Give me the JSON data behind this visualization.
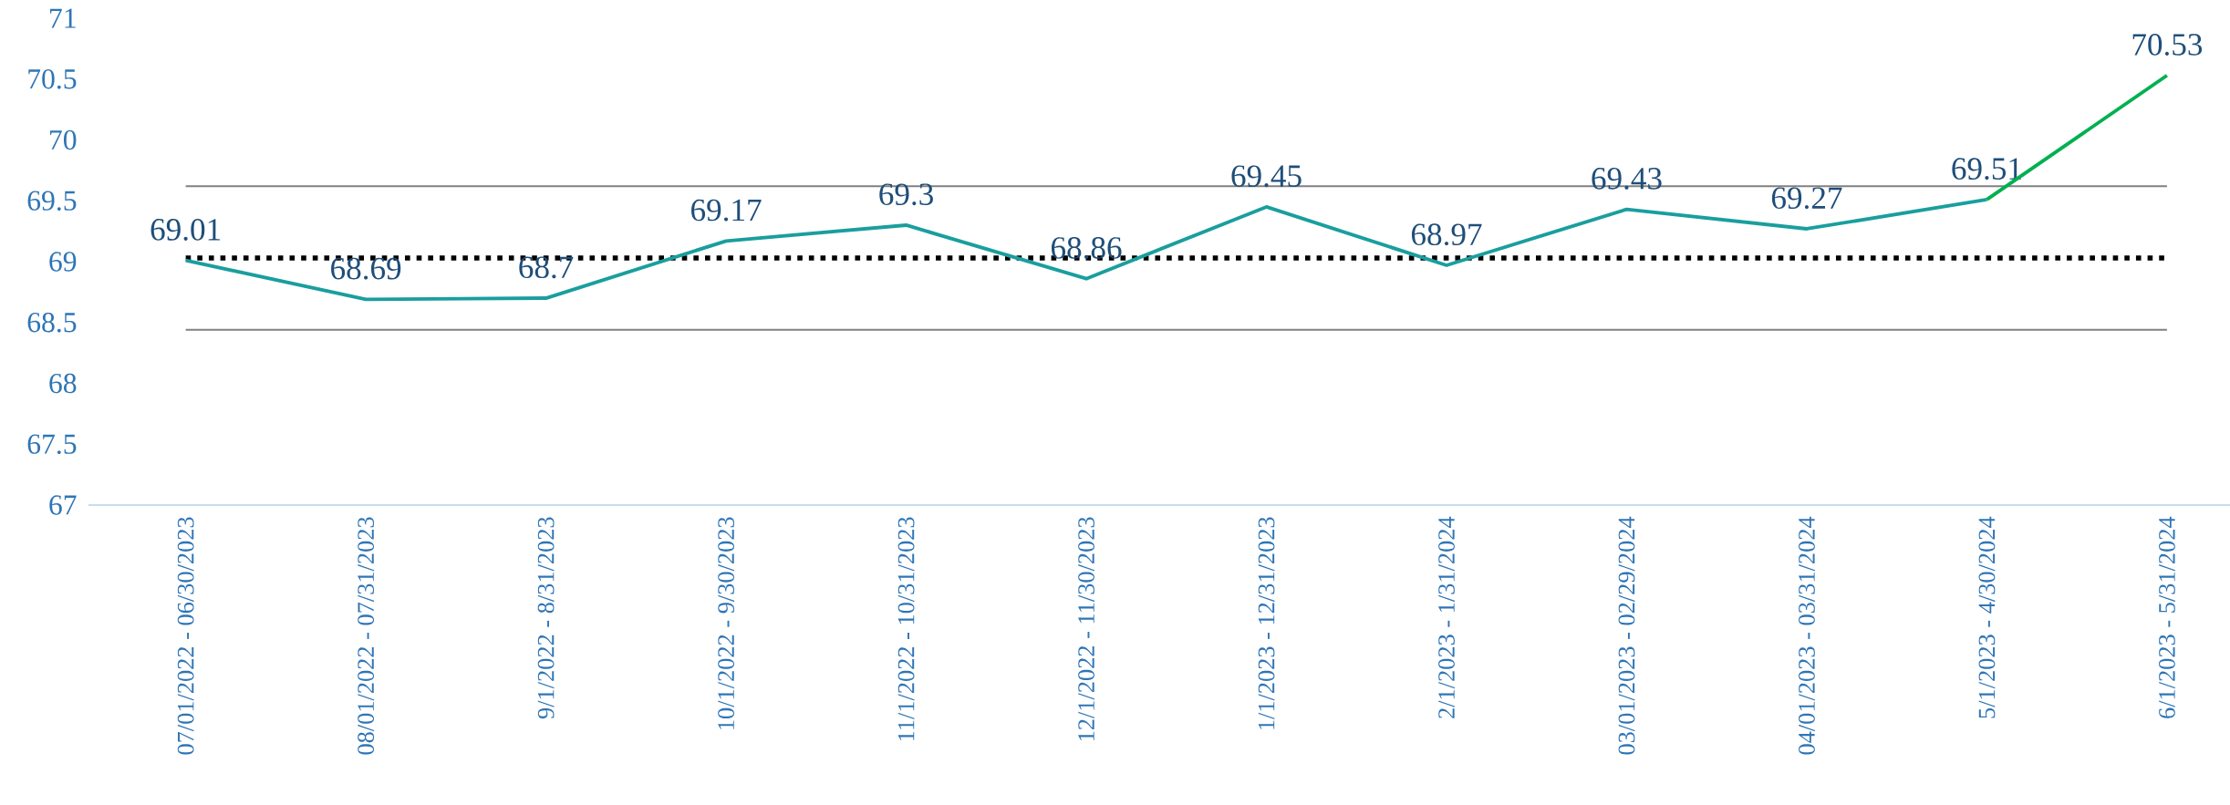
{
  "chart_data": {
    "type": "line",
    "categories": [
      "07/01/2022 - 06/30/2023",
      "08/01/2022 - 07/31/2023",
      "9/1/2022 - 8/31/2023",
      "10/1/2022 - 9/30/2023",
      "11/1/2022 - 10/31/2023",
      "12/1/2022 - 11/30/2023",
      "1/1/2023 - 12/31/2023",
      "2/1/2023 - 1/31/2024",
      "03/01/2023 - 02/29/2024",
      "04/01/2023 - 03/31/2024",
      "5/1/2023 - 4/30/2024",
      "6/1/2023 - 5/31/2024"
    ],
    "series": [
      {
        "color": "#1a9e9e",
        "values": [
          69.01,
          68.69,
          68.7,
          69.17,
          69.3,
          68.86,
          69.45,
          68.97,
          69.43,
          69.27,
          69.51,
          null
        ],
        "value_labels": [
          "69.01",
          "68.69",
          "68.7",
          "69.17",
          "69.3",
          "68.86",
          "69.45",
          "68.97",
          "69.43",
          "69.27",
          "69.51",
          null
        ]
      },
      {
        "color": "#00b050",
        "values": [
          null,
          null,
          null,
          null,
          null,
          null,
          null,
          null,
          null,
          null,
          69.51,
          70.53
        ],
        "value_labels": [
          null,
          null,
          null,
          null,
          null,
          null,
          null,
          null,
          null,
          null,
          null,
          "70.53"
        ]
      }
    ],
    "ylim": [
      67,
      71
    ],
    "yticks": [
      67,
      67.5,
      68,
      68.5,
      69,
      69.5,
      70,
      70.5,
      71
    ],
    "ref_lines": [
      {
        "axis": "y",
        "value": 69.62,
        "color": "#808080"
      },
      {
        "axis": "y",
        "value": 69.03,
        "color": "#000000",
        "line_style": "dotted"
      },
      {
        "axis": "y",
        "value": 68.44,
        "color": "#808080"
      }
    ],
    "line_style": "solid"
  }
}
